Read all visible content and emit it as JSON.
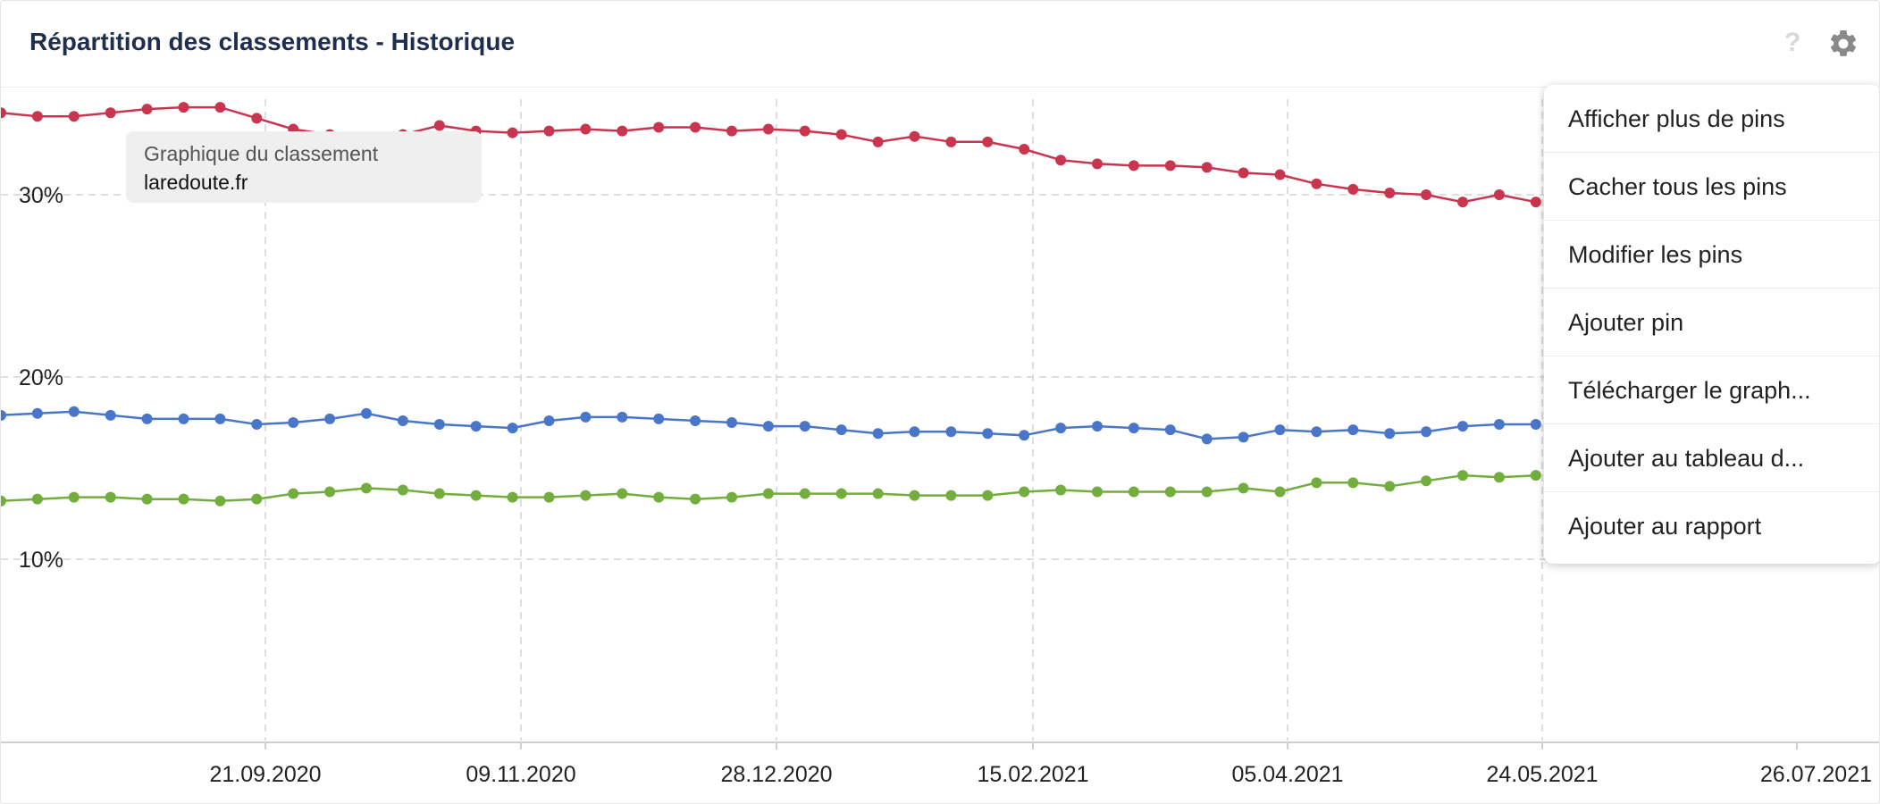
{
  "widget": {
    "title": "Répartition des classements - Historique",
    "help_icon": "?",
    "settings_icon": "gear-icon"
  },
  "tooltip": {
    "label": "Graphique du classement",
    "domain": "laredoute.fr"
  },
  "menu": {
    "items": [
      "Afficher plus de pins",
      "Cacher tous les pins",
      "Modifier les pins",
      "Ajouter pin",
      "Télécharger le graph...",
      "Ajouter au tableau d...",
      "Ajouter au rapport"
    ]
  },
  "colors": {
    "red": "#c9354f",
    "blue": "#4a76c9",
    "green": "#72ad3e",
    "grid": "#d4d4d4"
  },
  "chart_data": {
    "type": "line",
    "title": "Répartition des classements - Historique",
    "xlabel": "",
    "ylabel": "",
    "x_ticks": [
      "21.09.2020",
      "09.11.2020",
      "28.12.2020",
      "15.02.2021",
      "05.04.2021",
      "24.05.2021",
      "26.07.2021"
    ],
    "y_ticks": [
      "10%",
      "20%",
      "30%"
    ],
    "ylim": [
      0,
      35
    ],
    "x_start": "2020-07-20",
    "x_step_days": 7,
    "grid": true,
    "series": [
      {
        "color": "#c9354f",
        "values": [
          34.5,
          34.3,
          34.3,
          34.5,
          34.7,
          34.8,
          34.8,
          34.2,
          33.6,
          33.3,
          33.1,
          33.3,
          33.8,
          33.5,
          33.4,
          33.5,
          33.6,
          33.5,
          33.7,
          33.7,
          33.5,
          33.6,
          33.5,
          33.3,
          32.9,
          33.2,
          32.9,
          32.9,
          32.5,
          31.9,
          31.7,
          31.6,
          31.6,
          31.5,
          31.2,
          31.1,
          30.6,
          30.3,
          30.1,
          30.0,
          29.6,
          30.0,
          29.6
        ]
      },
      {
        "color": "#4a76c9",
        "values": [
          17.9,
          18.0,
          18.1,
          17.9,
          17.7,
          17.7,
          17.7,
          17.4,
          17.5,
          17.7,
          18.0,
          17.6,
          17.4,
          17.3,
          17.2,
          17.6,
          17.8,
          17.8,
          17.7,
          17.6,
          17.5,
          17.3,
          17.3,
          17.1,
          16.9,
          17.0,
          17.0,
          16.9,
          16.8,
          17.2,
          17.3,
          17.2,
          17.1,
          16.6,
          16.7,
          17.1,
          17.0,
          17.1,
          16.9,
          17.0,
          17.3,
          17.4,
          17.4
        ]
      },
      {
        "color": "#72ad3e",
        "values": [
          13.2,
          13.3,
          13.4,
          13.4,
          13.3,
          13.3,
          13.2,
          13.3,
          13.6,
          13.7,
          13.9,
          13.8,
          13.6,
          13.5,
          13.4,
          13.4,
          13.5,
          13.6,
          13.4,
          13.3,
          13.4,
          13.6,
          13.6,
          13.6,
          13.6,
          13.5,
          13.5,
          13.5,
          13.7,
          13.8,
          13.7,
          13.7,
          13.7,
          13.7,
          13.9,
          13.7,
          14.2,
          14.2,
          14.0,
          14.3,
          14.6,
          14.5,
          14.6
        ]
      }
    ]
  }
}
